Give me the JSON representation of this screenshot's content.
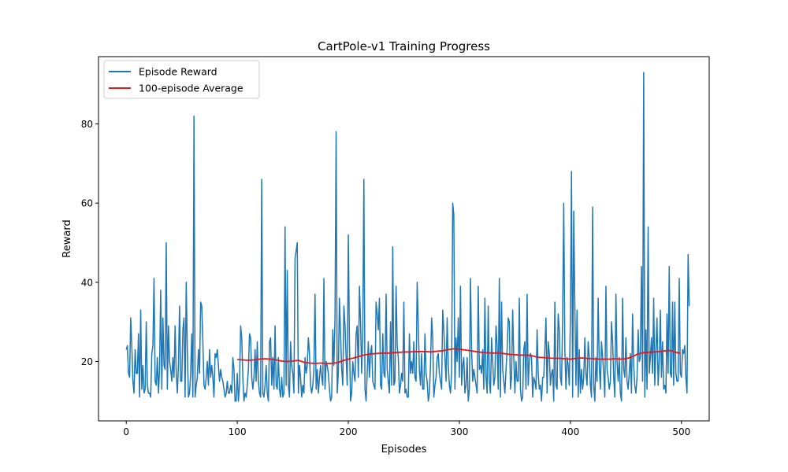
{
  "chart_data": {
    "type": "line",
    "title": "CartPole-v1 Training Progress",
    "xlabel": "Episodes",
    "ylabel": "Reward",
    "xlim": [
      -25,
      525
    ],
    "ylim": [
      5,
      97
    ],
    "xticks": [
      0,
      100,
      200,
      300,
      400,
      500
    ],
    "yticks": [
      20,
      40,
      60,
      80
    ],
    "legend_position": "upper-left",
    "series": [
      {
        "name": "Episode Reward",
        "color": "#1f77b4",
        "x_start": 0,
        "values": [
          23,
          24,
          17,
          16,
          31,
          24,
          15,
          12,
          23,
          17,
          17,
          27,
          11,
          33,
          13,
          19,
          12,
          13,
          30,
          14,
          12,
          12,
          11,
          22,
          24,
          41,
          15,
          14,
          21,
          12,
          18,
          38,
          13,
          31,
          19,
          18,
          50,
          13,
          29,
          20,
          18,
          15,
          21,
          16,
          29,
          17,
          12,
          19,
          34,
          15,
          15,
          28,
          31,
          11,
          40,
          23,
          11,
          12,
          17,
          27,
          11,
          82,
          11,
          14,
          16,
          23,
          17,
          35,
          34,
          25,
          14,
          13,
          16,
          20,
          14,
          23,
          16,
          19,
          16,
          11,
          22,
          21,
          23,
          19,
          15,
          18,
          16,
          15,
          13,
          11,
          12,
          15,
          12,
          12,
          14,
          12,
          21,
          18,
          10,
          10,
          17,
          10,
          14,
          29,
          26,
          16,
          10,
          12,
          11,
          14,
          18,
          27,
          26,
          16,
          13,
          16,
          23,
          15,
          25,
          15,
          12,
          11,
          66,
          12,
          11,
          14,
          19,
          12,
          10,
          25,
          26,
          14,
          21,
          13,
          29,
          14,
          13,
          21,
          13,
          11,
          16,
          11,
          12,
          54,
          14,
          43,
          14,
          11,
          25,
          19,
          17,
          12,
          46,
          48,
          50,
          12,
          19,
          16,
          11,
          14,
          12,
          21,
          17,
          19,
          26,
          22,
          14,
          12,
          14,
          18,
          37,
          13,
          18,
          12,
          16,
          19,
          16,
          14,
          41,
          13,
          20,
          19,
          17,
          13,
          10,
          11,
          28,
          19,
          31,
          78,
          12,
          17,
          36,
          27,
          18,
          14,
          34,
          29,
          21,
          14,
          52,
          25,
          10,
          12,
          20,
          17,
          15,
          27,
          29,
          16,
          39,
          30,
          17,
          27,
          66,
          13,
          10,
          17,
          25,
          16,
          22,
          24,
          15,
          14,
          13,
          35,
          32,
          28,
          36,
          14,
          13,
          27,
          17,
          16,
          37,
          18,
          15,
          12,
          30,
          14,
          49,
          14,
          15,
          39,
          24,
          21,
          12,
          14,
          17,
          15,
          35,
          12,
          13,
          11,
          11,
          27,
          17,
          20,
          17,
          25,
          16,
          15,
          40,
          29,
          18,
          14,
          22,
          13,
          13,
          27,
          17,
          15,
          10,
          12,
          19,
          31,
          26,
          11,
          14,
          16,
          21,
          22,
          17,
          15,
          13,
          33,
          28,
          21,
          15,
          31,
          19,
          14,
          12,
          17,
          60,
          57,
          13,
          26,
          20,
          31,
          16,
          39,
          14,
          19,
          21,
          12,
          14,
          21,
          10,
          13,
          41,
          23,
          15,
          18,
          16,
          14,
          12,
          39,
          18,
          19,
          17,
          23,
          13,
          36,
          16,
          12,
          34,
          15,
          12,
          26,
          20,
          14,
          16,
          29,
          24,
          13,
          41,
          11,
          35,
          18,
          15,
          12,
          18,
          23,
          31,
          30,
          13,
          16,
          33,
          21,
          12,
          20,
          15,
          15,
          36,
          13,
          10,
          11,
          23,
          25,
          13,
          37,
          14,
          20,
          22,
          21,
          11,
          16,
          15,
          13,
          28,
          17,
          13,
          14,
          10,
          16,
          16,
          23,
          31,
          12,
          25,
          22,
          14,
          17,
          18,
          10,
          35,
          14,
          13,
          32,
          28,
          16,
          14,
          31,
          60,
          23,
          13,
          21,
          19,
          14,
          31,
          68,
          11,
          58,
          34,
          14,
          33,
          11,
          23,
          12,
          18,
          13,
          16,
          26,
          17,
          14,
          25,
          21,
          14,
          11,
          59,
          14,
          10,
          21,
          15,
          36,
          19,
          13,
          25,
          21,
          17,
          11,
          39,
          18,
          16,
          13,
          15,
          30,
          25,
          16,
          11,
          37,
          20,
          15,
          21,
          12,
          10,
          36,
          18,
          16,
          26,
          15,
          13,
          17,
          22,
          12,
          32,
          19,
          14,
          12,
          16,
          28,
          20,
          21,
          44,
          15,
          93,
          11,
          28,
          13,
          54,
          17,
          21,
          26,
          17,
          36,
          14,
          23,
          31,
          14,
          20,
          33,
          16,
          25,
          13,
          14,
          12,
          32,
          17,
          44,
          17,
          16,
          35,
          14,
          35,
          17,
          15,
          15,
          41,
          17,
          16,
          23,
          22,
          24,
          16,
          12,
          47,
          34
        ]
      },
      {
        "name": "100-episode Average",
        "color": "#e31a1c",
        "x": [
          100,
          105,
          110,
          115,
          120,
          125,
          130,
          135,
          140,
          145,
          150,
          155,
          160,
          165,
          170,
          175,
          180,
          185,
          190,
          195,
          200,
          205,
          210,
          215,
          220,
          225,
          230,
          235,
          240,
          245,
          250,
          255,
          260,
          265,
          270,
          275,
          280,
          285,
          290,
          295,
          300,
          305,
          310,
          315,
          320,
          325,
          330,
          335,
          340,
          345,
          350,
          355,
          360,
          365,
          370,
          375,
          380,
          385,
          390,
          395,
          400,
          405,
          410,
          415,
          420,
          425,
          430,
          435,
          440,
          445,
          450,
          455,
          460,
          465,
          470,
          475,
          480,
          485,
          490,
          495,
          499
        ],
        "values": [
          20.5,
          20.4,
          20.3,
          20.4,
          20.6,
          20.7,
          20.6,
          20.4,
          20.1,
          20.0,
          20.1,
          20.3,
          19.8,
          19.6,
          19.5,
          19.6,
          19.5,
          19.5,
          19.7,
          20.2,
          20.6,
          20.9,
          21.3,
          21.7,
          21.9,
          22.0,
          22.1,
          22.1,
          22.2,
          22.3,
          22.4,
          22.4,
          22.5,
          22.5,
          22.5,
          22.4,
          22.6,
          22.7,
          23.0,
          23.2,
          23.1,
          22.9,
          22.7,
          22.5,
          22.3,
          22.2,
          22.1,
          22.2,
          22.0,
          21.8,
          21.7,
          21.6,
          21.6,
          21.5,
          21.1,
          21.0,
          20.9,
          20.8,
          20.8,
          20.7,
          20.6,
          20.8,
          20.9,
          20.8,
          20.7,
          20.6,
          20.6,
          20.6,
          20.7,
          20.6,
          20.7,
          21.1,
          21.8,
          22.2,
          22.3,
          22.4,
          22.5,
          22.7,
          22.8,
          22.3,
          22.1
        ]
      }
    ]
  }
}
